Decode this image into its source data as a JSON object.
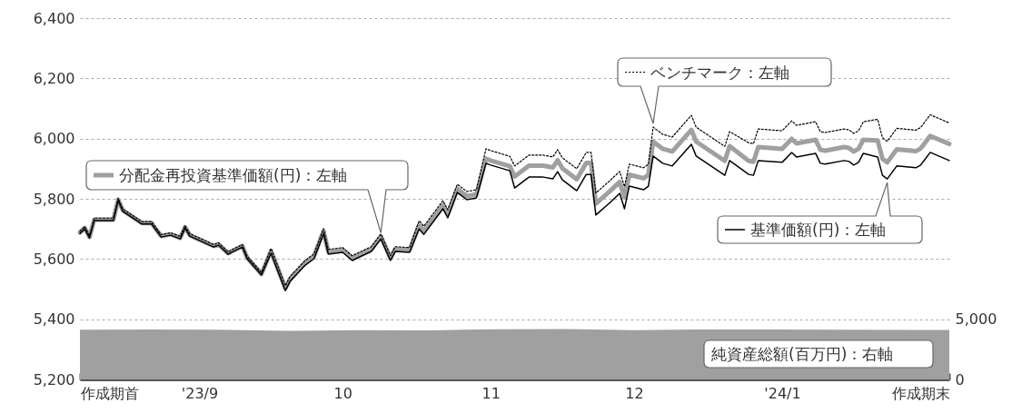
{
  "chart_data": {
    "type": "line",
    "x": [
      "2023-08-22",
      "2023-08-23",
      "2023-08-24",
      "2023-08-25",
      "2023-08-28",
      "2023-08-29",
      "2023-08-30",
      "2023-08-31",
      "2023-09-04",
      "2023-09-06",
      "2023-09-08",
      "2023-09-10",
      "2023-09-12",
      "2023-09-13",
      "2023-09-14",
      "2023-09-19",
      "2023-09-20",
      "2023-09-22",
      "2023-09-25",
      "2023-09-26",
      "2023-09-28",
      "2023-09-29",
      "2023-10-01",
      "2023-10-04",
      "2023-10-05",
      "2023-10-08",
      "2023-10-10",
      "2023-10-12",
      "2023-10-13",
      "2023-10-16",
      "2023-10-18",
      "2023-10-22",
      "2023-10-24",
      "2023-10-26",
      "2023-10-27",
      "2023-10-30",
      "2023-11-01",
      "2023-11-02",
      "2023-11-06",
      "2023-11-07",
      "2023-11-09",
      "2023-11-11",
      "2023-11-13",
      "2023-11-15",
      "2023-11-16",
      "2023-11-20",
      "2023-11-21",
      "2023-11-24",
      "2023-11-27",
      "2023-11-29",
      "2023-11-30",
      "2023-12-01",
      "2023-12-04",
      "2023-12-06",
      "2023-12-07",
      "2023-12-08",
      "2023-12-11",
      "2023-12-13",
      "2023-12-14",
      "2023-12-15",
      "2023-12-18",
      "2023-12-19",
      "2023-12-20",
      "2023-12-22",
      "2023-12-24",
      "2023-12-28",
      "2023-12-29",
      "2024-01-04",
      "2024-01-05",
      "2024-01-09",
      "2024-01-10",
      "2024-01-11",
      "2024-01-16",
      "2024-01-18",
      "2024-01-19",
      "2024-01-23",
      "2024-01-24",
      "2024-01-25",
      "2024-01-29",
      "2024-01-30",
      "2024-01-31",
      "2024-02-01",
      "2024-02-02",
      "2024-02-05",
      "2024-02-06",
      "2024-02-07",
      "2024-02-09",
      "2024-02-13",
      "2024-02-14",
      "2024-02-16",
      "2024-02-20"
    ],
    "series": [
      {
        "name": "基準価額(円)：左軸",
        "color": "#000000",
        "line_style": "solid",
        "values": [
          5685,
          5700,
          5670,
          5728,
          5728,
          5728,
          5794,
          5758,
          5716,
          5716,
          5673,
          5679,
          5667,
          5703,
          5676,
          5640,
          5646,
          5616,
          5640,
          5601,
          5565,
          5547,
          5619,
          5495,
          5526,
          5577,
          5601,
          5685,
          5616,
          5622,
          5595,
          5625,
          5667,
          5595,
          5625,
          5622,
          5700,
          5682,
          5767,
          5737,
          5821,
          5797,
          5803,
          5918,
          5912,
          5893,
          5836,
          5872,
          5872,
          5866,
          5890,
          5863,
          5827,
          5881,
          5881,
          5746,
          5788,
          5818,
          5767,
          5842,
          5830,
          5842,
          5942,
          5918,
          5909,
          5981,
          5942,
          5878,
          5927,
          5881,
          5878,
          5927,
          5921,
          5954,
          5939,
          5951,
          5918,
          5915,
          5927,
          5924,
          5912,
          5921,
          5951,
          5939,
          5878,
          5866,
          5909,
          5903,
          5912,
          5954,
          5927
        ]
      },
      {
        "name": "分配金再投資基準価額(円)：左軸",
        "color": "#a0a0a0",
        "line_style": "solid",
        "values": [
          5688,
          5703,
          5673,
          5731,
          5731,
          5731,
          5797,
          5761,
          5719,
          5719,
          5676,
          5682,
          5670,
          5706,
          5679,
          5643,
          5649,
          5619,
          5643,
          5604,
          5568,
          5550,
          5627,
          5503,
          5534,
          5585,
          5609,
          5693,
          5624,
          5630,
          5603,
          5633,
          5675,
          5603,
          5633,
          5630,
          5712,
          5694,
          5779,
          5749,
          5833,
          5809,
          5815,
          5933,
          5927,
          5908,
          5874,
          5910,
          5910,
          5904,
          5928,
          5901,
          5865,
          5919,
          5919,
          5784,
          5826,
          5856,
          5805,
          5880,
          5868,
          5880,
          5990,
          5966,
          5957,
          6029,
          5990,
          5926,
          5975,
          5926,
          5923,
          5972,
          5966,
          5999,
          5984,
          5996,
          5963,
          5960,
          5972,
          5969,
          5957,
          5966,
          5996,
          5994,
          5933,
          5921,
          5964,
          5958,
          5967,
          6009,
          5982
        ]
      },
      {
        "name": "ベンチマーク：左軸",
        "color": "#000000",
        "line_style": "dotted",
        "values": [
          5693,
          5708,
          5678,
          5736,
          5736,
          5736,
          5802,
          5766,
          5724,
          5724,
          5681,
          5687,
          5675,
          5711,
          5684,
          5648,
          5654,
          5624,
          5648,
          5609,
          5573,
          5555,
          5635,
          5511,
          5542,
          5593,
          5617,
          5701,
          5632,
          5638,
          5611,
          5641,
          5683,
          5611,
          5641,
          5638,
          5727,
          5709,
          5794,
          5764,
          5848,
          5824,
          5830,
          5966,
          5960,
          5941,
          5909,
          5945,
          5945,
          5939,
          5963,
          5936,
          5900,
          5954,
          5954,
          5819,
          5861,
          5891,
          5840,
          5915,
          5903,
          5915,
          6038,
          6014,
          6005,
          6077,
          6038,
          5974,
          6023,
          5986,
          5983,
          6032,
          6026,
          6059,
          6044,
          6056,
          6023,
          6020,
          6032,
          6029,
          6017,
          6026,
          6056,
          6064,
          6003,
          5991,
          6034,
          6028,
          6037,
          6079,
          6052
        ]
      },
      {
        "name": "純資産総額(百万円)：右軸",
        "type": "area",
        "axis": "y2",
        "color": "#a0a0a0",
        "x": [
          "2023-08-22",
          "2023-09-06",
          "2023-09-20",
          "2023-10-05",
          "2023-10-19",
          "2023-11-03",
          "2023-11-17",
          "2023-12-02",
          "2023-12-16",
          "2023-12-31",
          "2024-01-15",
          "2024-01-29",
          "2024-02-13",
          "2024-02-20"
        ],
        "values": [
          4150,
          4170,
          4140,
          4060,
          4110,
          4100,
          4180,
          4200,
          4110,
          4170,
          4170,
          4140,
          4120,
          4130
        ]
      }
    ],
    "xlim": [
      "2023-08-22",
      "2024-02-20"
    ],
    "xticks": [
      {
        "value": "2023-08-22",
        "label": "作成期首"
      },
      {
        "value": "2023-09-01",
        "label": null
      },
      {
        "value": "2023-09-16",
        "label": "'23/9"
      },
      {
        "value": "2023-10-01",
        "label": null
      },
      {
        "value": "2023-10-16",
        "label": "10"
      },
      {
        "value": "2023-11-01",
        "label": null
      },
      {
        "value": "2023-11-16",
        "label": "11"
      },
      {
        "value": "2023-12-01",
        "label": null
      },
      {
        "value": "2023-12-16",
        "label": "12"
      },
      {
        "value": "2024-01-01",
        "label": null
      },
      {
        "value": "2024-01-16",
        "label": "'24/1"
      },
      {
        "value": "2024-02-01",
        "label": null
      },
      {
        "value": "2024-02-20",
        "label": "作成期末"
      }
    ],
    "ylim": [
      5200,
      6400
    ],
    "yticks": [
      {
        "value": 5200,
        "label": "5,200"
      },
      {
        "value": 5400,
        "label": "5,400"
      },
      {
        "value": 5600,
        "label": "5,600"
      },
      {
        "value": 5800,
        "label": "5,800"
      },
      {
        "value": 6000,
        "label": "6,000"
      },
      {
        "value": 6200,
        "label": "6,200"
      },
      {
        "value": 6400,
        "label": "6,400"
      }
    ],
    "y2lim": [
      0,
      30150
    ],
    "y2ticks": [
      0,
      {
        "value": 5000,
        "label": "5,000"
      }
    ],
    "grid": "y",
    "legend": "top"
  }
}
